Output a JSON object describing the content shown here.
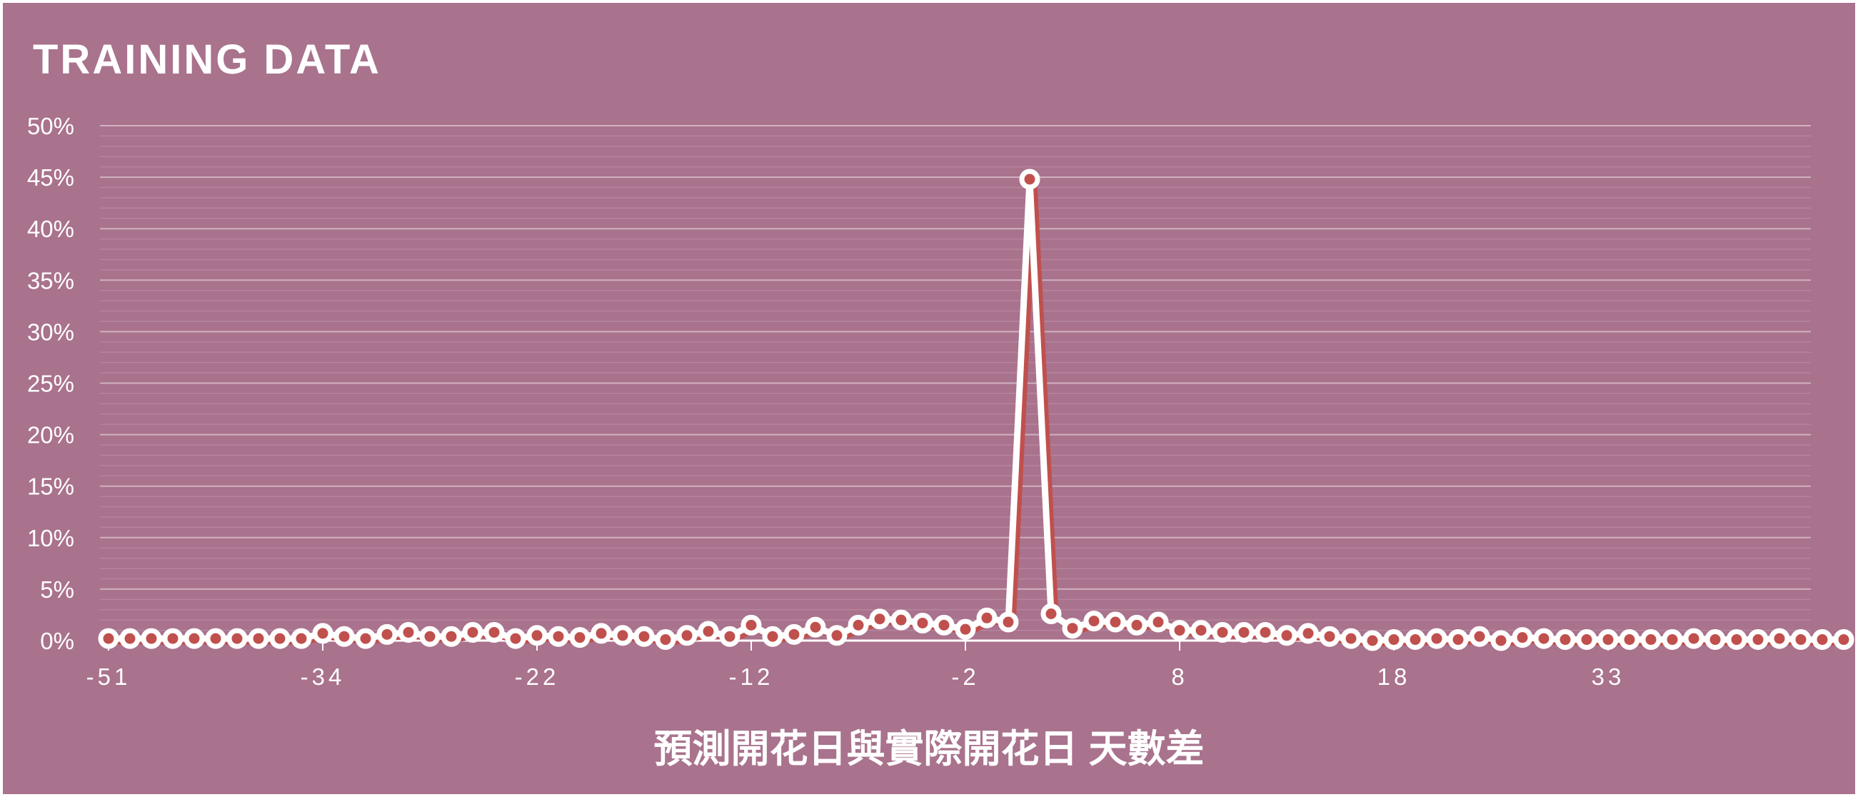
{
  "chart_data": {
    "type": "line",
    "title": "TRAINING DATA",
    "xlabel": "預測開花日與實際開花日 天數差",
    "ylabel": "",
    "ylim": [
      0,
      0.5
    ],
    "yticks": [
      "0%",
      "5%",
      "10%",
      "15%",
      "20%",
      "25%",
      "30%",
      "35%",
      "40%",
      "45%",
      "50%"
    ],
    "xtick_labels": [
      "-51",
      "-34",
      "-22",
      "-12",
      "-2",
      "8",
      "18",
      "33"
    ],
    "xtick_positions": [
      0,
      10,
      20,
      30,
      40,
      50,
      60,
      70
    ],
    "grid": true,
    "legend": "none",
    "series": [
      {
        "color": "#c0504d",
        "values": [
          0.002,
          0.002,
          0.002,
          0.002,
          0.002,
          0.002,
          0.002,
          0.002,
          0.002,
          0.002,
          0.007,
          0.004,
          0.002,
          0.006,
          0.008,
          0.004,
          0.004,
          0.008,
          0.008,
          0.002,
          0.005,
          0.004,
          0.003,
          0.007,
          0.005,
          0.004,
          0.001,
          0.005,
          0.009,
          0.004,
          0.015,
          0.004,
          0.006,
          0.013,
          0.005,
          0.015,
          0.021,
          0.02,
          0.017,
          0.015,
          0.011,
          0.022,
          0.018,
          0.448,
          0.026,
          0.012,
          0.019,
          0.018,
          0.015,
          0.018,
          0.01,
          0.01,
          0.008,
          0.008,
          0.008,
          0.005,
          0.007,
          0.004,
          0.002,
          0.0,
          0.001,
          0.001,
          0.002,
          0.001,
          0.004,
          0.0,
          0.003,
          0.002,
          0.001,
          0.001,
          0.001,
          0.001,
          0.001,
          0.001,
          0.002,
          0.001,
          0.001,
          0.001,
          0.002,
          0.001,
          0.001,
          0.001
        ]
      }
    ]
  },
  "colors": {
    "background": "#a9728d",
    "line": "#ffffff",
    "line_shadow": "#c0504d",
    "marker_fill": "#c0504d",
    "gridline": "#ffffff"
  }
}
